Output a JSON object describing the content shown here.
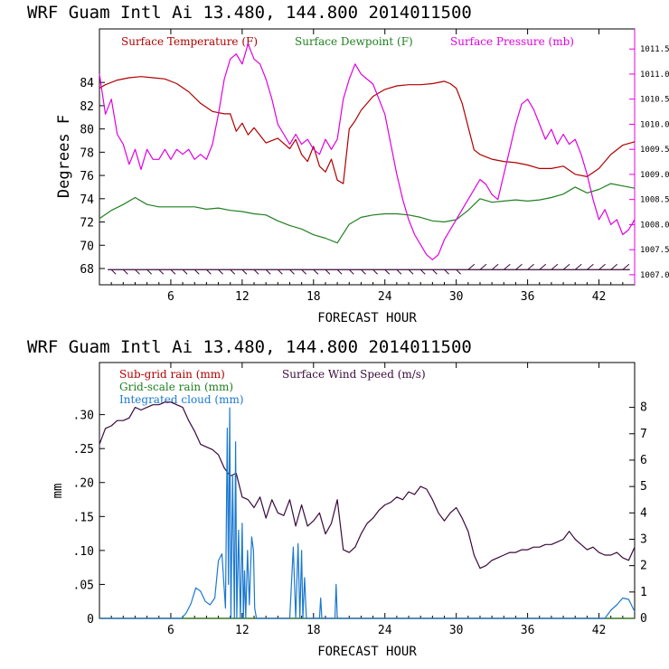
{
  "chart_data": [
    {
      "type": "line",
      "title": "WRF   Guam Intl Ai   13.480, 144.800   2014011500",
      "xlabel": "FORECAST HOUR",
      "ylabel": "Degrees F",
      "xlim": [
        0,
        45
      ],
      "ylim": [
        66.6,
        88.6
      ],
      "y2lim": [
        1006.8,
        1011.9
      ],
      "x_ticks": [
        6,
        12,
        18,
        24,
        30,
        36,
        42
      ],
      "y_ticks": [
        68,
        70,
        72,
        74,
        76,
        78,
        80,
        82,
        84
      ],
      "y2_ticks": [
        "1007.0",
        "1007.5",
        "1008.0",
        "1008.5",
        "1009.0",
        "1009.5",
        "1010.0",
        "1010.5",
        "1011.0",
        "1011.5"
      ],
      "legend": [
        {
          "label": "Surface Temperature (F)",
          "color": "#b00000"
        },
        {
          "label": "Surface Dewpoint (F)",
          "color": "#208020"
        },
        {
          "label": "Surface Pressure (mb)",
          "color": "#e000e0"
        }
      ],
      "wind_barb_level": 67.9,
      "series": [
        {
          "name": "Surface Temperature (F)",
          "color": "#b00000",
          "axis": "left",
          "x": [
            0,
            0.5,
            1.5,
            2.5,
            3.5,
            4.5,
            5.5,
            6.5,
            7.5,
            8.5,
            9.5,
            10.5,
            11,
            11.5,
            12,
            12.5,
            13,
            14,
            15,
            16,
            16.5,
            17,
            17.5,
            18,
            18.5,
            19,
            19.5,
            20,
            20.5,
            21,
            21.5,
            22,
            23,
            24,
            25,
            26,
            27,
            28,
            29,
            29.5,
            30,
            30.5,
            31,
            31.5,
            32,
            33,
            34,
            35,
            36,
            37,
            38,
            39,
            40,
            41,
            42,
            43,
            44,
            45
          ],
          "y": [
            83.5,
            83.8,
            84.2,
            84.4,
            84.5,
            84.4,
            84.3,
            83.9,
            83.2,
            82.2,
            81.5,
            81.3,
            81.3,
            79.8,
            80.5,
            79.5,
            80.1,
            78.8,
            79.2,
            78.3,
            79.1,
            77.8,
            77.2,
            78.5,
            76.8,
            76.3,
            77.4,
            75.6,
            75.3,
            80,
            80.7,
            81.6,
            82.8,
            83.4,
            83.7,
            83.8,
            83.8,
            83.9,
            84.1,
            83.9,
            83.5,
            82.2,
            80.2,
            78.2,
            77.8,
            77.4,
            77.2,
            77.1,
            76.9,
            76.6,
            76.6,
            76.8,
            76.1,
            75.9,
            76.6,
            77.8,
            78.6,
            78.9
          ]
        },
        {
          "name": "Surface Dewpoint (F)",
          "color": "#208020",
          "axis": "left",
          "x": [
            0,
            1,
            2,
            3,
            4,
            5,
            6,
            7,
            8,
            9,
            10,
            11,
            12,
            13,
            14,
            15,
            16,
            17,
            18,
            19,
            20,
            21,
            22,
            23,
            24,
            25,
            26,
            27,
            28,
            29,
            30,
            31,
            32,
            33,
            34,
            35,
            36,
            37,
            38,
            39,
            40,
            41,
            42,
            43,
            44,
            45
          ],
          "y": [
            72.3,
            73,
            73.5,
            74.1,
            73.5,
            73.3,
            73.3,
            73.3,
            73.3,
            73.1,
            73.2,
            73,
            72.9,
            72.7,
            72.6,
            72.1,
            71.7,
            71.4,
            70.9,
            70.6,
            70.2,
            71.8,
            72.4,
            72.6,
            72.7,
            72.7,
            72.6,
            72.4,
            72.1,
            72,
            72.2,
            73,
            74,
            73.7,
            73.8,
            73.9,
            73.8,
            73.9,
            74.1,
            74.4,
            75,
            74.5,
            74.8,
            75.3,
            75.1,
            74.9
          ]
        },
        {
          "name": "Surface Pressure (mb)",
          "color": "#e000e0",
          "axis": "right",
          "x": [
            0,
            0.5,
            1,
            1.5,
            2,
            2.5,
            3,
            3.5,
            4,
            4.5,
            5,
            5.5,
            6,
            6.5,
            7,
            7.5,
            8,
            8.5,
            9,
            9.5,
            10,
            10.5,
            11,
            11.5,
            12,
            12.5,
            13,
            13.5,
            14,
            14.5,
            15,
            15.5,
            16,
            16.5,
            17,
            17.5,
            18,
            18.5,
            19,
            19.5,
            20,
            20.5,
            21,
            21.5,
            22,
            22.5,
            23,
            23.5,
            24,
            24.5,
            25,
            25.5,
            26,
            26.5,
            27,
            27.5,
            28,
            28.5,
            29,
            29.5,
            30,
            30.5,
            31,
            31.5,
            32,
            32.5,
            33,
            33.5,
            34,
            34.5,
            35,
            35.5,
            36,
            36.5,
            37,
            37.5,
            38,
            38.5,
            39,
            39.5,
            40,
            40.5,
            41,
            41.5,
            42,
            42.5,
            43,
            43.5,
            44,
            44.5,
            45
          ],
          "y": [
            1011.0,
            1010.2,
            1010.5,
            1009.8,
            1009.6,
            1009.2,
            1009.5,
            1009.1,
            1009.5,
            1009.3,
            1009.3,
            1009.5,
            1009.3,
            1009.5,
            1009.4,
            1009.5,
            1009.3,
            1009.4,
            1009.3,
            1009.6,
            1010.2,
            1010.9,
            1011.3,
            1011.4,
            1011.2,
            1011.6,
            1011.3,
            1011.2,
            1010.9,
            1010.5,
            1010.0,
            1009.8,
            1009.6,
            1009.8,
            1009.6,
            1009.7,
            1009.5,
            1009.4,
            1009.7,
            1009.5,
            1009.7,
            1010.5,
            1010.9,
            1011.2,
            1011.0,
            1010.9,
            1010.8,
            1010.5,
            1010.2,
            1009.6,
            1009.0,
            1008.5,
            1008.1,
            1007.8,
            1007.6,
            1007.4,
            1007.3,
            1007.4,
            1007.7,
            1007.9,
            1008.1,
            1008.3,
            1008.5,
            1008.7,
            1008.9,
            1008.8,
            1008.6,
            1008.5,
            1009.0,
            1009.5,
            1010.0,
            1010.4,
            1010.5,
            1010.3,
            1010.0,
            1009.7,
            1009.9,
            1009.6,
            1009.8,
            1009.6,
            1009.7,
            1009.4,
            1009.0,
            1008.5,
            1008.1,
            1008.3,
            1008.0,
            1008.1,
            1007.8,
            1007.9,
            1008.1
          ]
        }
      ]
    },
    {
      "type": "line",
      "title": "WRF   Guam Intl Ai   13.480, 144.800   2014011500",
      "xlabel": "FORECAST HOUR",
      "ylabel": "mm",
      "xlim": [
        0,
        45
      ],
      "ylim": [
        0,
        0.3767
      ],
      "y2lim": [
        0,
        9.7
      ],
      "x_ticks": [
        6,
        12,
        18,
        24,
        30,
        36,
        42
      ],
      "y_ticks": [
        0,
        0.05,
        0.1,
        0.15,
        0.2,
        0.25,
        0.3
      ],
      "y_tick_labels": [
        "0",
        ".05",
        ".10",
        ".15",
        ".20",
        ".25",
        ".30"
      ],
      "y2_ticks": [
        0,
        1,
        2,
        3,
        4,
        5,
        6,
        7,
        8
      ],
      "legend": [
        {
          "label": "Sub-grid rain (mm)",
          "color": "#b00000"
        },
        {
          "label": "Surface Wind Speed (m/s)",
          "color": "#3a0a3a"
        },
        {
          "label": "Grid-scale rain (mm)",
          "color": "#208020"
        },
        {
          "label": "Integrated cloud (mm)",
          "color": "#1a78d0"
        }
      ],
      "series": [
        {
          "name": "Sub-grid rain (mm)",
          "color": "#b00000",
          "axis": "left",
          "x": [
            0,
            45
          ],
          "y": [
            0,
            0
          ]
        },
        {
          "name": "Grid-scale rain (mm)",
          "color": "#208020",
          "axis": "left",
          "x": [
            0,
            45
          ],
          "y": [
            0,
            0
          ]
        },
        {
          "name": "Surface Wind Speed (m/s)",
          "color": "#3a0a3a",
          "axis": "right",
          "x": [
            0,
            0.5,
            1,
            1.5,
            2,
            2.5,
            3,
            3.5,
            4,
            4.5,
            5,
            5.5,
            6,
            6.5,
            7,
            7.5,
            8,
            8.5,
            9,
            9.5,
            10,
            10.5,
            11,
            11.5,
            12,
            12.5,
            13,
            13.5,
            14,
            14.5,
            15,
            15.5,
            16,
            16.5,
            17,
            17.5,
            18,
            18.5,
            19,
            19.5,
            20,
            20.5,
            21,
            21.5,
            22,
            22.5,
            23,
            23.5,
            24,
            24.5,
            25,
            25.5,
            26,
            26.5,
            27,
            27.5,
            28,
            28.5,
            29,
            29.5,
            30,
            30.5,
            31,
            31.5,
            32,
            32.5,
            33,
            33.5,
            34,
            34.5,
            35,
            35.5,
            36,
            36.5,
            37,
            37.5,
            38,
            38.5,
            39,
            39.5,
            40,
            40.5,
            41,
            41.5,
            42,
            42.5,
            43,
            43.5,
            44,
            44.5,
            45
          ],
          "y": [
            6.6,
            7.2,
            7.3,
            7.5,
            7.5,
            7.6,
            8.0,
            7.9,
            8.0,
            8.1,
            8.1,
            8.2,
            8.2,
            8.1,
            8.0,
            7.5,
            7.1,
            6.6,
            6.5,
            6.4,
            6.2,
            5.7,
            5.4,
            5.5,
            4.6,
            4.5,
            4.2,
            4.6,
            3.8,
            4.5,
            4.0,
            3.9,
            4.5,
            3.5,
            4.3,
            3.5,
            3.7,
            4.0,
            3.2,
            3.6,
            4.5,
            2.6,
            2.5,
            2.7,
            3.2,
            3.6,
            3.8,
            4.1,
            4.3,
            4.4,
            4.6,
            4.5,
            4.8,
            4.7,
            5.0,
            4.9,
            4.5,
            4.0,
            3.7,
            4.0,
            4.2,
            3.8,
            3.3,
            2.4,
            1.9,
            2.0,
            2.2,
            2.3,
            2.4,
            2.5,
            2.5,
            2.6,
            2.6,
            2.7,
            2.7,
            2.8,
            2.8,
            2.9,
            3.0,
            3.3,
            3.0,
            2.8,
            2.6,
            2.7,
            2.5,
            2.4,
            2.4,
            2.5,
            2.3,
            2.2,
            2.7
          ]
        },
        {
          "name": "Integrated cloud (mm)",
          "color": "#1a78d0",
          "axis": "left",
          "x": [
            0,
            6.9,
            7.3,
            7.7,
            8.1,
            8.5,
            8.9,
            9.3,
            9.7,
            10.0,
            10.3,
            10.6,
            10.75,
            10.85,
            10.95,
            11.05,
            11.2,
            11.35,
            11.45,
            11.55,
            11.7,
            11.85,
            12.0,
            12.1,
            12.2,
            12.3,
            12.45,
            12.6,
            12.8,
            12.95,
            13.05,
            13.2,
            13.35,
            13.6,
            14,
            16.0,
            16.3,
            16.5,
            16.7,
            16.85,
            17.0,
            17.1,
            17.25,
            17.4,
            17.6,
            17.8,
            18.5,
            18.6,
            18.7,
            18.8,
            19.8,
            19.9,
            20.0,
            20.1,
            20.2,
            42.5,
            43.0,
            43.5,
            44.0,
            44.5,
            45
          ],
          "y": [
            0,
            0,
            0.008,
            0.022,
            0.045,
            0.04,
            0.025,
            0.02,
            0.03,
            0.085,
            0.095,
            0.015,
            0.28,
            0.05,
            0.31,
            0.0,
            0.21,
            0.0,
            0.26,
            0.0,
            0.13,
            0.0,
            0.14,
            0.0,
            0.07,
            0.0,
            0.1,
            0.02,
            0.12,
            0.1,
            0.015,
            0.0,
            0.0,
            0.0,
            0.0,
            0.0,
            0.105,
            0.0,
            0.11,
            0.0,
            0.1,
            0.0,
            0.06,
            0.0,
            0.0,
            0.0,
            0.0,
            0.03,
            0.0,
            0.0,
            0.0,
            0.05,
            0.0,
            0.0,
            0.0,
            0.0,
            0.012,
            0.02,
            0.03,
            0.028,
            0.01
          ]
        }
      ]
    }
  ]
}
